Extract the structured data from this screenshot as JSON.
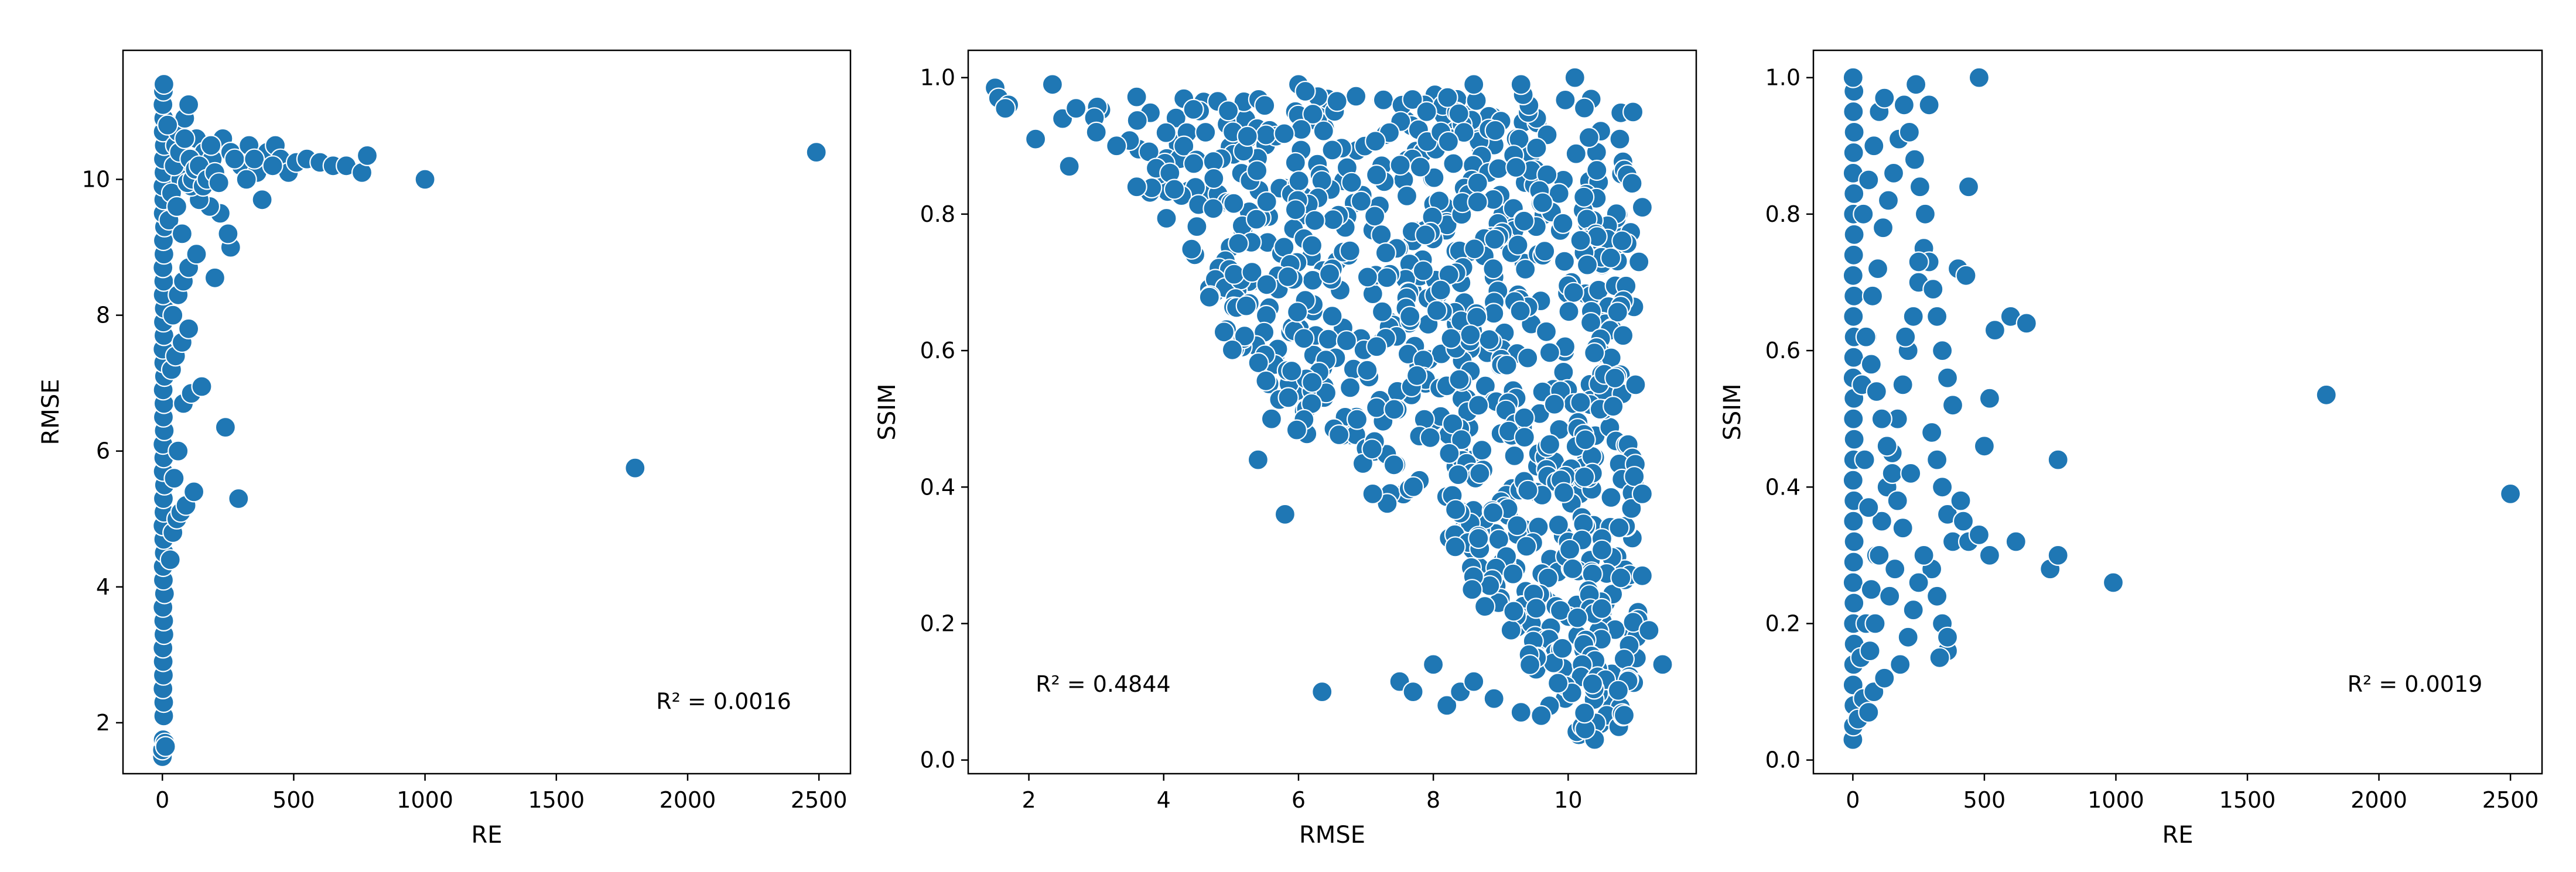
{
  "chart_data": [
    {
      "type": "scatter",
      "xlabel": "RE",
      "ylabel": "RMSE",
      "xlim": [
        -150,
        2620
      ],
      "ylim": [
        1.25,
        11.9
      ],
      "xticks": [
        0,
        500,
        1000,
        1500,
        2000,
        2500
      ],
      "yticks": [
        2,
        4,
        6,
        8,
        10
      ],
      "color": "#1f77b4",
      "annotation": {
        "text": "R² = 0.0016",
        "x": 1880,
        "y": 2.2
      },
      "points": [
        [
          0,
          1.5
        ],
        [
          0,
          1.6
        ],
        [
          3,
          1.75
        ],
        [
          10,
          1.7
        ],
        [
          12,
          1.65
        ],
        [
          5,
          2.1
        ],
        [
          5,
          2.3
        ],
        [
          2,
          2.5
        ],
        [
          4,
          2.7
        ],
        [
          3,
          2.9
        ],
        [
          2,
          3.1
        ],
        [
          6,
          3.3
        ],
        [
          5,
          3.5
        ],
        [
          2,
          3.7
        ],
        [
          8,
          3.9
        ],
        [
          4,
          4.1
        ],
        [
          3,
          4.3
        ],
        [
          7,
          4.5
        ],
        [
          5,
          4.7
        ],
        [
          2,
          4.9
        ],
        [
          6,
          5.1
        ],
        [
          4,
          5.3
        ],
        [
          8,
          5.5
        ],
        [
          3,
          5.7
        ],
        [
          5,
          5.9
        ],
        [
          2,
          6.1
        ],
        [
          7,
          6.3
        ],
        [
          4,
          6.5
        ],
        [
          6,
          6.7
        ],
        [
          3,
          6.9
        ],
        [
          8,
          7.1
        ],
        [
          5,
          7.3
        ],
        [
          2,
          7.5
        ],
        [
          6,
          7.7
        ],
        [
          4,
          7.9
        ],
        [
          7,
          8.1
        ],
        [
          3,
          8.3
        ],
        [
          5,
          8.5
        ],
        [
          2,
          8.7
        ],
        [
          6,
          8.9
        ],
        [
          4,
          9.1
        ],
        [
          8,
          9.3
        ],
        [
          3,
          9.5
        ],
        [
          5,
          9.7
        ],
        [
          2,
          9.9
        ],
        [
          6,
          10.1
        ],
        [
          4,
          10.3
        ],
        [
          7,
          10.5
        ],
        [
          3,
          10.7
        ],
        [
          5,
          10.9
        ],
        [
          2,
          11.1
        ],
        [
          4,
          11.3
        ],
        [
          6,
          11.4
        ],
        [
          30,
          4.4
        ],
        [
          40,
          4.8
        ],
        [
          55,
          5.0
        ],
        [
          70,
          5.1
        ],
        [
          90,
          5.2
        ],
        [
          120,
          5.4
        ],
        [
          45,
          5.6
        ],
        [
          60,
          6.0
        ],
        [
          80,
          6.7
        ],
        [
          110,
          6.85
        ],
        [
          150,
          6.95
        ],
        [
          35,
          7.2
        ],
        [
          50,
          7.4
        ],
        [
          75,
          7.6
        ],
        [
          100,
          7.8
        ],
        [
          40,
          8.0
        ],
        [
          60,
          8.3
        ],
        [
          80,
          8.5
        ],
        [
          100,
          8.7
        ],
        [
          130,
          8.9
        ],
        [
          200,
          8.55
        ],
        [
          240,
          6.35
        ],
        [
          290,
          5.3
        ],
        [
          260,
          9.0
        ],
        [
          250,
          9.2
        ],
        [
          220,
          9.5
        ],
        [
          180,
          9.6
        ],
        [
          140,
          9.7
        ],
        [
          110,
          9.9
        ],
        [
          90,
          10.2
        ],
        [
          70,
          10.0
        ],
        [
          50,
          10.5
        ],
        [
          60,
          10.7
        ],
        [
          85,
          10.9
        ],
        [
          100,
          11.1
        ],
        [
          130,
          10.6
        ],
        [
          160,
          10.4
        ],
        [
          190,
          10.3
        ],
        [
          230,
          10.6
        ],
        [
          260,
          10.4
        ],
        [
          300,
          10.2
        ],
        [
          330,
          10.5
        ],
        [
          360,
          10.1
        ],
        [
          380,
          9.7
        ],
        [
          400,
          10.4
        ],
        [
          430,
          10.5
        ],
        [
          450,
          10.3
        ],
        [
          480,
          10.1
        ],
        [
          510,
          10.25
        ],
        [
          550,
          10.3
        ],
        [
          600,
          10.25
        ],
        [
          650,
          10.2
        ],
        [
          700,
          10.2
        ],
        [
          760,
          10.1
        ],
        [
          780,
          10.35
        ],
        [
          1000,
          10.0
        ],
        [
          1800,
          5.75
        ],
        [
          2490,
          10.4
        ],
        [
          20,
          10.8
        ],
        [
          25,
          9.4
        ],
        [
          35,
          9.8
        ],
        [
          45,
          10.2
        ],
        [
          55,
          9.6
        ],
        [
          65,
          10.4
        ],
        [
          75,
          9.2
        ],
        [
          85,
          10.6
        ],
        [
          95,
          9.95
        ],
        [
          105,
          10.3
        ],
        [
          115,
          10.0
        ],
        [
          125,
          10.15
        ],
        [
          140,
          10.2
        ],
        [
          155,
          9.9
        ],
        [
          170,
          10.0
        ],
        [
          185,
          10.5
        ],
        [
          200,
          10.1
        ],
        [
          215,
          9.95
        ],
        [
          275,
          10.3
        ],
        [
          320,
          10.0
        ],
        [
          350,
          10.3
        ],
        [
          420,
          10.2
        ]
      ]
    },
    {
      "type": "scatter",
      "xlabel": "RMSE",
      "ylabel": "SSIM",
      "xlim": [
        1.1,
        11.9
      ],
      "ylim": [
        -0.02,
        1.04
      ],
      "xticks": [
        2,
        4,
        6,
        8,
        10
      ],
      "yticks": [
        0.0,
        0.2,
        0.4,
        0.6,
        0.8,
        1.0
      ],
      "tick_format": "0.0",
      "color": "#1f77b4",
      "annotation": {
        "text": "R² = 0.4844",
        "x": 2.1,
        "y": 0.1
      },
      "points": [
        [
          1.5,
          0.985
        ],
        [
          1.55,
          0.97
        ],
        [
          1.7,
          0.96
        ],
        [
          1.65,
          0.955
        ],
        [
          2.1,
          0.91
        ],
        [
          2.35,
          0.99
        ],
        [
          2.5,
          0.94
        ],
        [
          2.7,
          0.955
        ],
        [
          2.6,
          0.87
        ],
        [
          3.0,
          0.92
        ],
        [
          3.3,
          0.9
        ],
        [
          3.6,
          0.84
        ],
        [
          5.4,
          0.44
        ],
        [
          5.8,
          0.36
        ],
        [
          6.35,
          0.1
        ],
        [
          7.1,
          0.39
        ],
        [
          7.5,
          0.115
        ],
        [
          7.7,
          0.1
        ],
        [
          8.0,
          0.14
        ],
        [
          8.2,
          0.08
        ],
        [
          8.4,
          0.1
        ],
        [
          8.6,
          0.115
        ],
        [
          8.9,
          0.09
        ],
        [
          9.3,
          0.07
        ],
        [
          9.6,
          0.065
        ],
        [
          6.0,
          0.99
        ],
        [
          6.1,
          0.98
        ],
        [
          8.6,
          0.99
        ],
        [
          9.3,
          0.99
        ],
        [
          10.1,
          1.0
        ],
        [
          11.4,
          0.14
        ],
        [
          11.2,
          0.19
        ],
        [
          11.1,
          0.27
        ],
        [
          11.1,
          0.39
        ],
        [
          11.0,
          0.55
        ],
        [
          11.05,
          0.73
        ],
        [
          11.1,
          0.81
        ],
        [
          7.9,
          0.95
        ],
        [
          5.6,
          0.5
        ],
        [
          5.9,
          0.57
        ]
      ],
      "regions": [
        {
          "y": 0.95,
          "x_min": 2.9,
          "x_max": 11.0,
          "density": 70
        },
        {
          "y": 0.9,
          "x_min": 3.3,
          "x_max": 11.0,
          "density": 72
        },
        {
          "y": 0.85,
          "x_min": 3.7,
          "x_max": 11.0,
          "density": 72
        },
        {
          "y": 0.8,
          "x_min": 4.0,
          "x_max": 11.0,
          "density": 70
        },
        {
          "y": 0.75,
          "x_min": 4.4,
          "x_max": 11.0,
          "density": 68
        },
        {
          "y": 0.7,
          "x_min": 4.6,
          "x_max": 11.0,
          "density": 66
        },
        {
          "y": 0.65,
          "x_min": 4.8,
          "x_max": 11.0,
          "density": 62
        },
        {
          "y": 0.6,
          "x_min": 5.0,
          "x_max": 11.0,
          "density": 60
        },
        {
          "y": 0.55,
          "x_min": 5.4,
          "x_max": 11.0,
          "density": 56
        },
        {
          "y": 0.5,
          "x_min": 5.9,
          "x_max": 11.0,
          "density": 52
        },
        {
          "y": 0.45,
          "x_min": 6.6,
          "x_max": 11.0,
          "density": 46
        },
        {
          "y": 0.4,
          "x_min": 7.3,
          "x_max": 11.0,
          "density": 42
        },
        {
          "y": 0.35,
          "x_min": 7.9,
          "x_max": 11.0,
          "density": 36
        },
        {
          "y": 0.3,
          "x_min": 8.2,
          "x_max": 11.0,
          "density": 34
        },
        {
          "y": 0.25,
          "x_min": 8.5,
          "x_max": 11.0,
          "density": 32
        },
        {
          "y": 0.2,
          "x_min": 8.9,
          "x_max": 11.1,
          "density": 30
        },
        {
          "y": 0.15,
          "x_min": 9.4,
          "x_max": 11.1,
          "density": 26
        },
        {
          "y": 0.1,
          "x_min": 9.7,
          "x_max": 11.0,
          "density": 22
        },
        {
          "y": 0.05,
          "x_min": 10.0,
          "x_max": 10.9,
          "density": 14
        }
      ]
    },
    {
      "type": "scatter",
      "xlabel": "RE",
      "ylabel": "SSIM",
      "xlim": [
        -150,
        2620
      ],
      "ylim": [
        -0.02,
        1.04
      ],
      "xticks": [
        0,
        500,
        1000,
        1500,
        2000,
        2500
      ],
      "yticks": [
        0.0,
        0.2,
        0.4,
        0.6,
        0.8,
        1.0
      ],
      "tick_format": "0.0",
      "color": "#1f77b4",
      "annotation": {
        "text": "R² = 0.0019",
        "x": 1880,
        "y": 0.1
      },
      "points": [
        [
          0,
          0.03
        ],
        [
          2,
          0.05
        ],
        [
          4,
          0.08
        ],
        [
          1,
          0.11
        ],
        [
          3,
          0.14
        ],
        [
          5,
          0.17
        ],
        [
          2,
          0.2
        ],
        [
          4,
          0.23
        ],
        [
          1,
          0.26
        ],
        [
          3,
          0.29
        ],
        [
          5,
          0.32
        ],
        [
          2,
          0.35
        ],
        [
          4,
          0.38
        ],
        [
          1,
          0.41
        ],
        [
          3,
          0.44
        ],
        [
          5,
          0.47
        ],
        [
          2,
          0.5
        ],
        [
          4,
          0.53
        ],
        [
          1,
          0.56
        ],
        [
          3,
          0.59
        ],
        [
          5,
          0.62
        ],
        [
          2,
          0.65
        ],
        [
          4,
          0.68
        ],
        [
          1,
          0.71
        ],
        [
          3,
          0.74
        ],
        [
          5,
          0.77
        ],
        [
          2,
          0.8
        ],
        [
          4,
          0.83
        ],
        [
          1,
          0.86
        ],
        [
          3,
          0.89
        ],
        [
          5,
          0.92
        ],
        [
          2,
          0.95
        ],
        [
          4,
          0.98
        ],
        [
          1,
          1.0
        ],
        [
          20,
          0.06
        ],
        [
          40,
          0.09
        ],
        [
          60,
          0.07
        ],
        [
          80,
          0.1
        ],
        [
          30,
          0.15
        ],
        [
          50,
          0.2
        ],
        [
          70,
          0.25
        ],
        [
          90,
          0.3
        ],
        [
          110,
          0.35
        ],
        [
          130,
          0.4
        ],
        [
          150,
          0.45
        ],
        [
          170,
          0.5
        ],
        [
          190,
          0.55
        ],
        [
          210,
          0.6
        ],
        [
          230,
          0.65
        ],
        [
          250,
          0.7
        ],
        [
          270,
          0.75
        ],
        [
          40,
          0.8
        ],
        [
          60,
          0.85
        ],
        [
          80,
          0.9
        ],
        [
          100,
          0.95
        ],
        [
          120,
          0.97
        ],
        [
          35,
          0.55
        ],
        [
          55,
          0.62
        ],
        [
          75,
          0.68
        ],
        [
          95,
          0.72
        ],
        [
          115,
          0.78
        ],
        [
          135,
          0.82
        ],
        [
          155,
          0.86
        ],
        [
          175,
          0.91
        ],
        [
          195,
          0.96
        ],
        [
          215,
          0.92
        ],
        [
          235,
          0.88
        ],
        [
          255,
          0.84
        ],
        [
          275,
          0.8
        ],
        [
          290,
          0.73
        ],
        [
          305,
          0.69
        ],
        [
          320,
          0.65
        ],
        [
          340,
          0.6
        ],
        [
          360,
          0.56
        ],
        [
          380,
          0.52
        ],
        [
          300,
          0.48
        ],
        [
          320,
          0.44
        ],
        [
          340,
          0.4
        ],
        [
          360,
          0.36
        ],
        [
          380,
          0.32
        ],
        [
          300,
          0.28
        ],
        [
          320,
          0.24
        ],
        [
          340,
          0.2
        ],
        [
          360,
          0.16
        ],
        [
          210,
          0.18
        ],
        [
          230,
          0.22
        ],
        [
          250,
          0.26
        ],
        [
          270,
          0.3
        ],
        [
          190,
          0.34
        ],
        [
          170,
          0.38
        ],
        [
          150,
          0.42
        ],
        [
          130,
          0.46
        ],
        [
          110,
          0.5
        ],
        [
          90,
          0.54
        ],
        [
          70,
          0.58
        ],
        [
          50,
          0.62
        ],
        [
          160,
          0.28
        ],
        [
          180,
          0.14
        ],
        [
          240,
          0.99
        ],
        [
          290,
          0.96
        ],
        [
          250,
          0.73
        ],
        [
          200,
          0.62
        ],
        [
          220,
          0.42
        ],
        [
          140,
          0.24
        ],
        [
          120,
          0.12
        ],
        [
          100,
          0.3
        ],
        [
          60,
          0.37
        ],
        [
          45,
          0.44
        ],
        [
          65,
          0.16
        ],
        [
          85,
          0.2
        ],
        [
          400,
          0.72
        ],
        [
          430,
          0.71
        ],
        [
          440,
          0.84
        ],
        [
          480,
          1.0
        ],
        [
          420,
          0.35
        ],
        [
          440,
          0.32
        ],
        [
          410,
          0.38
        ],
        [
          480,
          0.33
        ],
        [
          500,
          0.46
        ],
        [
          520,
          0.53
        ],
        [
          520,
          0.3
        ],
        [
          540,
          0.63
        ],
        [
          600,
          0.65
        ],
        [
          660,
          0.64
        ],
        [
          620,
          0.32
        ],
        [
          750,
          0.28
        ],
        [
          780,
          0.3
        ],
        [
          780,
          0.44
        ],
        [
          990,
          0.26
        ],
        [
          1800,
          0.535
        ],
        [
          2500,
          0.39
        ],
        [
          360,
          0.18
        ],
        [
          330,
          0.15
        ]
      ]
    }
  ]
}
